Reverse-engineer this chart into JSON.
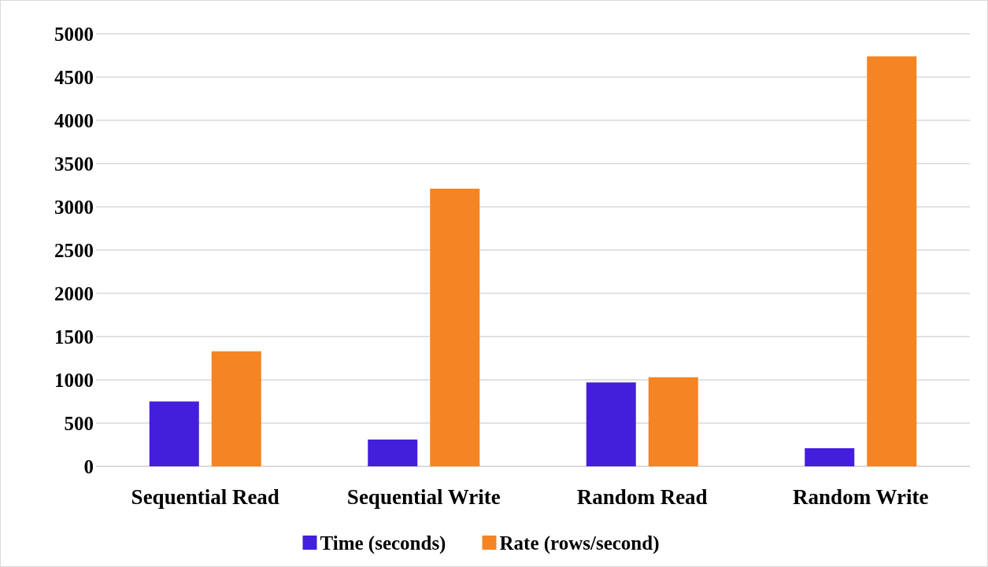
{
  "chart_data": {
    "type": "bar",
    "categories": [
      "Sequential Read",
      "Sequential Write",
      "Random Read",
      "Random Write"
    ],
    "series": [
      {
        "name": "Time (seconds)",
        "color": "#431fdc",
        "values": [
          750,
          310,
          970,
          210
        ]
      },
      {
        "name": "Rate (rows/second)",
        "color": "#f58423",
        "values": [
          1330,
          3210,
          1030,
          4740
        ]
      }
    ],
    "ylim": [
      0,
      5000
    ],
    "yticks": [
      0,
      500,
      1000,
      1500,
      2000,
      2500,
      3000,
      3500,
      4000,
      4500,
      5000
    ],
    "grid": "y",
    "legend": "bottom"
  }
}
